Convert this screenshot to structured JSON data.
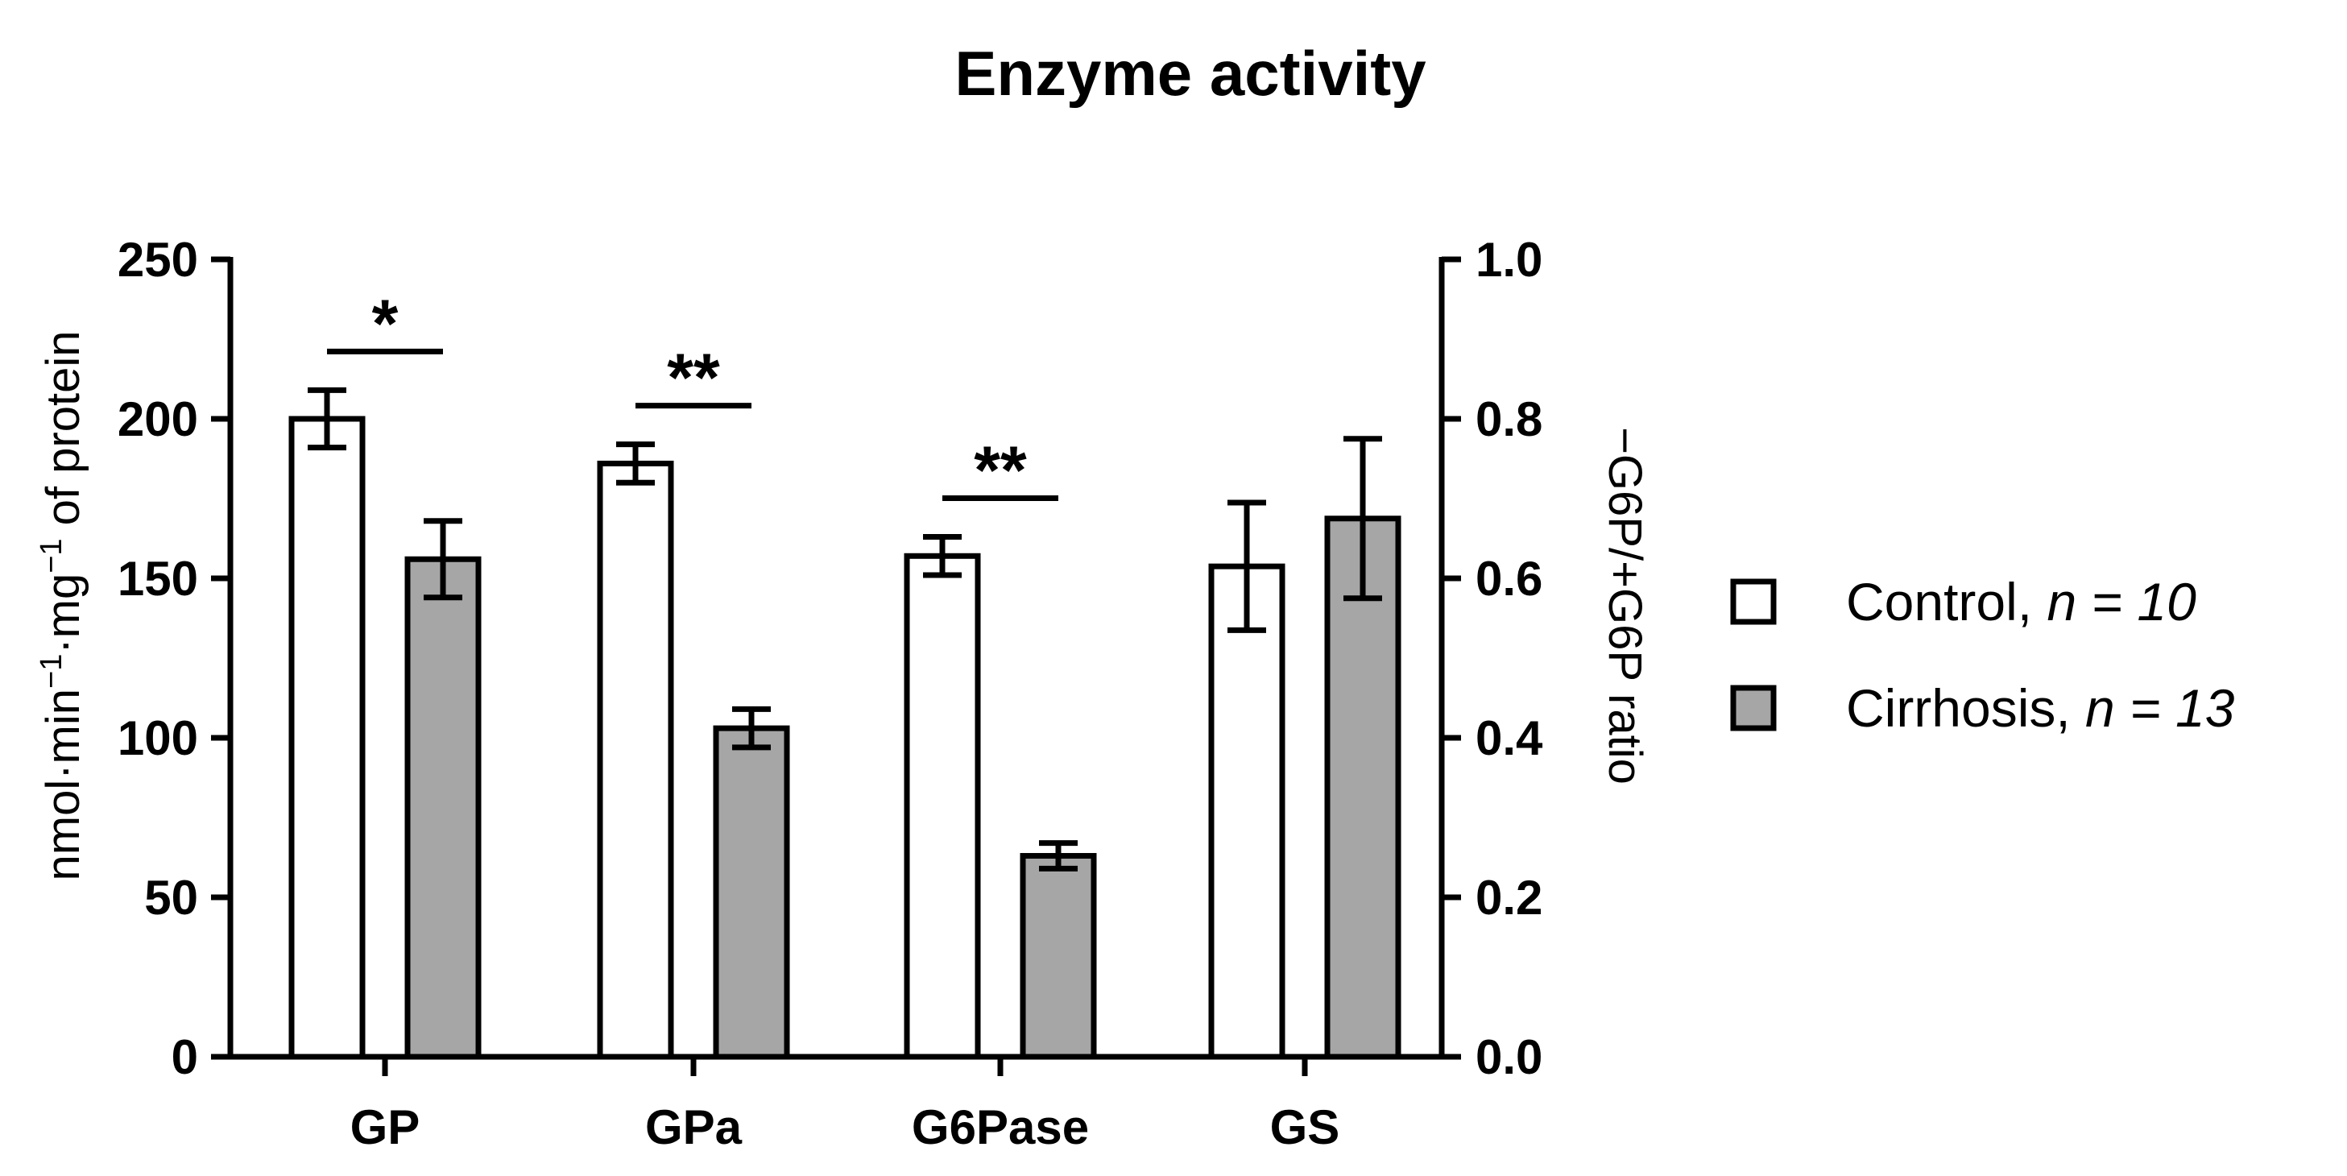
{
  "chart_data": {
    "type": "bar",
    "title": "Enzyme activity",
    "categories": [
      "GP",
      "GPa",
      "G6Pase",
      "GS"
    ],
    "ylabel_left_parts": [
      "nmol·min",
      "−1",
      "·mg",
      "−1",
      " of protein"
    ],
    "ylabel_right": "−G6P/+G6P ratio",
    "ylim_left": [
      0,
      250
    ],
    "ylim_right": [
      0,
      1.0
    ],
    "yticks_left": [
      "0",
      "50",
      "100",
      "150",
      "200",
      "250"
    ],
    "yticks_right": [
      "0.0",
      "0.2",
      "0.4",
      "0.6",
      "0.8",
      "1.0"
    ],
    "legend_position": "right",
    "series": [
      {
        "name_text": "Control, ",
        "name_n": "n = 10",
        "color": "#ffffff",
        "values_left": [
          200,
          186,
          157
        ],
        "errors_left": [
          9,
          6,
          6
        ],
        "values_right": [
          0.615
        ],
        "errors_right": [
          0.08
        ]
      },
      {
        "name_text": "Cirrhosis, ",
        "name_n": "n = 13",
        "color": "#a6a6a6",
        "values_left": [
          156,
          103,
          63
        ],
        "errors_left": [
          12,
          6,
          4
        ],
        "values_right": [
          0.675
        ],
        "errors_right": [
          0.1
        ]
      }
    ],
    "significance": [
      {
        "category": "GP",
        "label": "*"
      },
      {
        "category": "GPa",
        "label": "**"
      },
      {
        "category": "G6Pase",
        "label": "**"
      }
    ]
  }
}
